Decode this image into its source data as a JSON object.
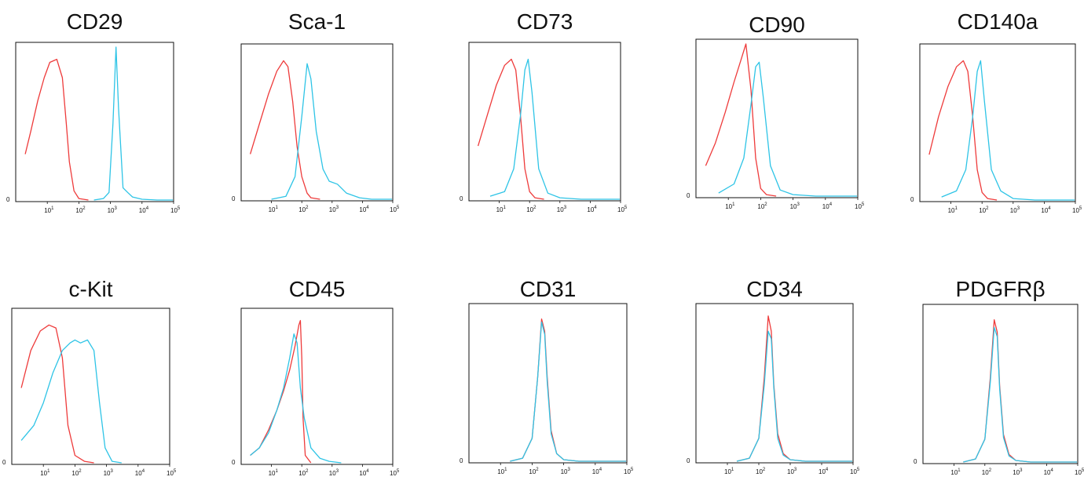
{
  "colors": {
    "control": "#ee3b3b",
    "marker": "#2ec4e6",
    "axis": "#111111"
  },
  "chart_data": [
    {
      "type": "line",
      "title": "CD29",
      "xscale": "log",
      "xlim": [
        1,
        100000
      ],
      "xticks": [
        "10^1",
        "10^2",
        "10^3",
        "10^4",
        "10^5"
      ],
      "yticks": [
        "0"
      ],
      "series": [
        {
          "color": "#ee3b3b",
          "x": [
            2,
            3,
            5,
            8,
            12,
            20,
            30,
            40,
            50,
            70,
            100,
            200
          ],
          "y": [
            0.3,
            0.45,
            0.65,
            0.8,
            0.9,
            0.92,
            0.8,
            0.5,
            0.25,
            0.06,
            0.01,
            0
          ]
        },
        {
          "color": "#2ec4e6",
          "x": [
            300,
            600,
            900,
            1200,
            1500,
            1800,
            2500,
            3500,
            5000,
            10000,
            30000,
            100000
          ],
          "y": [
            0,
            0.01,
            0.05,
            0.5,
            1.0,
            0.6,
            0.08,
            0.05,
            0.02,
            0.005,
            0,
            0
          ]
        }
      ]
    },
    {
      "type": "line",
      "title": "Sca-1",
      "xscale": "log",
      "xlim": [
        1,
        100000
      ],
      "xticks": [
        "10^1",
        "10^2",
        "10^3",
        "10^4",
        "10^5"
      ],
      "yticks": [
        "0"
      ],
      "series": [
        {
          "color": "#ee3b3b",
          "x": [
            2,
            4,
            8,
            15,
            25,
            35,
            50,
            70,
            100,
            150,
            200,
            400
          ],
          "y": [
            0.3,
            0.5,
            0.7,
            0.85,
            0.92,
            0.88,
            0.65,
            0.35,
            0.15,
            0.04,
            0.01,
            0
          ]
        },
        {
          "color": "#2ec4e6",
          "x": [
            10,
            30,
            60,
            100,
            150,
            200,
            300,
            500,
            800,
            1500,
            3000,
            8000,
            20000,
            100000
          ],
          "y": [
            0,
            0.02,
            0.15,
            0.55,
            0.9,
            0.8,
            0.45,
            0.2,
            0.12,
            0.1,
            0.04,
            0.01,
            0,
            0
          ]
        }
      ]
    },
    {
      "type": "line",
      "title": "CD73",
      "xscale": "log",
      "xlim": [
        1,
        100000
      ],
      "xticks": [
        "10^1",
        "10^2",
        "10^3",
        "10^4",
        "10^5"
      ],
      "yticks": [
        "0"
      ],
      "series": [
        {
          "color": "#ee3b3b",
          "x": [
            2,
            4,
            8,
            15,
            25,
            35,
            50,
            70,
            100,
            150,
            300
          ],
          "y": [
            0.35,
            0.55,
            0.75,
            0.88,
            0.92,
            0.85,
            0.55,
            0.2,
            0.05,
            0.01,
            0
          ]
        },
        {
          "color": "#2ec4e6",
          "x": [
            5,
            15,
            30,
            50,
            70,
            90,
            120,
            200,
            400,
            1000,
            5000,
            100000
          ],
          "y": [
            0.02,
            0.05,
            0.2,
            0.55,
            0.85,
            0.92,
            0.7,
            0.2,
            0.04,
            0.01,
            0,
            0
          ]
        }
      ]
    },
    {
      "type": "line",
      "title": "CD90",
      "xscale": "log",
      "xlim": [
        1,
        100000
      ],
      "xticks": [
        "10^1",
        "10^2",
        "10^3",
        "10^4",
        "10^5"
      ],
      "yticks": [
        "0"
      ],
      "series": [
        {
          "color": "#ee3b3b",
          "x": [
            2,
            4,
            8,
            15,
            25,
            35,
            50,
            70,
            100,
            150,
            300
          ],
          "y": [
            0.2,
            0.35,
            0.55,
            0.75,
            0.9,
            1.0,
            0.7,
            0.25,
            0.05,
            0.01,
            0
          ]
        },
        {
          "color": "#2ec4e6",
          "x": [
            5,
            15,
            30,
            50,
            70,
            90,
            120,
            200,
            400,
            1000,
            5000,
            100000
          ],
          "y": [
            0.02,
            0.08,
            0.25,
            0.6,
            0.85,
            0.88,
            0.65,
            0.2,
            0.04,
            0.01,
            0,
            0
          ]
        }
      ]
    },
    {
      "type": "line",
      "title": "CD140a",
      "xscale": "log",
      "xlim": [
        1,
        100000
      ],
      "xticks": [
        "10^1",
        "10^2",
        "10^3",
        "10^4",
        "10^5"
      ],
      "yticks": [
        "0"
      ],
      "series": [
        {
          "color": "#ee3b3b",
          "x": [
            2,
            4,
            8,
            15,
            25,
            35,
            50,
            70,
            100,
            150,
            300
          ],
          "y": [
            0.3,
            0.55,
            0.75,
            0.88,
            0.92,
            0.85,
            0.55,
            0.2,
            0.05,
            0.01,
            0
          ]
        },
        {
          "color": "#2ec4e6",
          "x": [
            5,
            15,
            30,
            50,
            70,
            90,
            120,
            200,
            400,
            1000,
            5000,
            100000
          ],
          "y": [
            0.02,
            0.06,
            0.2,
            0.55,
            0.85,
            0.92,
            0.65,
            0.2,
            0.06,
            0.01,
            0,
            0
          ]
        }
      ]
    },
    {
      "type": "line",
      "title": "c-Kit",
      "xscale": "log",
      "xlim": [
        1,
        100000
      ],
      "xticks": [
        "10^1",
        "10^2",
        "10^3",
        "10^4",
        "10^5"
      ],
      "yticks": [
        "0"
      ],
      "series": [
        {
          "color": "#ee3b3b",
          "x": [
            2,
            4,
            8,
            15,
            25,
            40,
            60,
            100,
            200,
            400
          ],
          "y": [
            0.5,
            0.75,
            0.88,
            0.92,
            0.9,
            0.7,
            0.25,
            0.05,
            0.01,
            0
          ]
        },
        {
          "color": "#2ec4e6",
          "x": [
            2,
            5,
            10,
            20,
            40,
            70,
            100,
            150,
            250,
            400,
            600,
            900,
            1500,
            3000
          ],
          "y": [
            0.15,
            0.25,
            0.4,
            0.6,
            0.75,
            0.8,
            0.82,
            0.8,
            0.82,
            0.75,
            0.4,
            0.1,
            0.01,
            0
          ]
        }
      ]
    },
    {
      "type": "line",
      "title": "CD45",
      "xscale": "log",
      "xlim": [
        1,
        100000
      ],
      "xticks": [
        "10^1",
        "10^2",
        "10^3",
        "10^4",
        "10^5"
      ],
      "yticks": [
        "0"
      ],
      "series": [
        {
          "color": "#ee3b3b",
          "x": [
            2,
            4,
            8,
            15,
            25,
            40,
            60,
            80,
            90,
            100,
            110,
            130,
            200
          ],
          "y": [
            0.05,
            0.1,
            0.22,
            0.35,
            0.48,
            0.62,
            0.78,
            0.92,
            0.95,
            0.7,
            0.3,
            0.05,
            0
          ]
        },
        {
          "color": "#2ec4e6",
          "x": [
            2,
            4,
            8,
            15,
            25,
            40,
            55,
            70,
            90,
            120,
            200,
            400,
            800,
            2000
          ],
          "y": [
            0.05,
            0.1,
            0.2,
            0.35,
            0.5,
            0.7,
            0.86,
            0.8,
            0.5,
            0.3,
            0.1,
            0.03,
            0.01,
            0
          ]
        }
      ]
    },
    {
      "type": "line",
      "title": "CD31",
      "xscale": "log",
      "xlim": [
        1,
        100000
      ],
      "xticks": [
        "10^1",
        "10^2",
        "10^3",
        "10^4",
        "10^5"
      ],
      "yticks": [
        "0"
      ],
      "series": [
        {
          "color": "#ee3b3b",
          "x": [
            20,
            50,
            100,
            150,
            200,
            250,
            300,
            400,
            600,
            1000,
            3000,
            100000
          ],
          "y": [
            0,
            0.02,
            0.15,
            0.55,
            0.93,
            0.85,
            0.55,
            0.2,
            0.05,
            0.01,
            0,
            0
          ]
        },
        {
          "color": "#2ec4e6",
          "x": [
            20,
            50,
            100,
            150,
            200,
            250,
            300,
            400,
            600,
            1000,
            3000,
            100000
          ],
          "y": [
            0,
            0.02,
            0.15,
            0.55,
            0.91,
            0.83,
            0.52,
            0.18,
            0.05,
            0.01,
            0,
            0
          ]
        }
      ]
    },
    {
      "type": "line",
      "title": "CD34",
      "xscale": "log",
      "xlim": [
        1,
        100000
      ],
      "xticks": [
        "10^1",
        "10^2",
        "10^3",
        "10^4",
        "10^5"
      ],
      "yticks": [
        "0"
      ],
      "series": [
        {
          "color": "#ee3b3b",
          "x": [
            20,
            50,
            100,
            150,
            200,
            250,
            300,
            400,
            600,
            1000,
            3000,
            100000
          ],
          "y": [
            0,
            0.02,
            0.15,
            0.55,
            0.95,
            0.85,
            0.5,
            0.18,
            0.05,
            0.01,
            0,
            0
          ]
        },
        {
          "color": "#2ec4e6",
          "x": [
            20,
            50,
            100,
            150,
            200,
            250,
            300,
            400,
            600,
            1000,
            3000,
            100000
          ],
          "y": [
            0,
            0.02,
            0.15,
            0.5,
            0.85,
            0.8,
            0.48,
            0.15,
            0.04,
            0.01,
            0,
            0
          ]
        }
      ]
    },
    {
      "type": "line",
      "title": "PDGFRβ",
      "xscale": "log",
      "xlim": [
        1,
        100000
      ],
      "xticks": [
        "10^1",
        "10^2",
        "10^3",
        "10^4",
        "10^5"
      ],
      "yticks": [
        "0"
      ],
      "series": [
        {
          "color": "#ee3b3b",
          "x": [
            20,
            50,
            100,
            150,
            200,
            250,
            300,
            400,
            600,
            1000,
            3000,
            100000
          ],
          "y": [
            0,
            0.02,
            0.15,
            0.55,
            0.93,
            0.85,
            0.5,
            0.18,
            0.05,
            0.01,
            0,
            0
          ]
        },
        {
          "color": "#2ec4e6",
          "x": [
            20,
            50,
            100,
            150,
            200,
            250,
            300,
            400,
            600,
            1000,
            3000,
            100000
          ],
          "y": [
            0,
            0.02,
            0.15,
            0.52,
            0.88,
            0.82,
            0.48,
            0.16,
            0.04,
            0.01,
            0,
            0
          ]
        }
      ]
    }
  ]
}
